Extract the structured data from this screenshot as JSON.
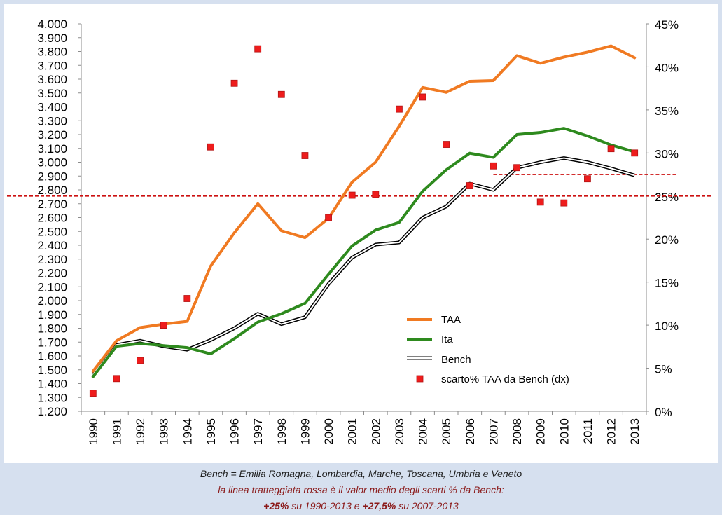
{
  "chart_data": {
    "type": "line",
    "categories": [
      "1990",
      "1991",
      "1992",
      "1993",
      "1994",
      "1995",
      "1996",
      "1997",
      "1998",
      "1999",
      "2000",
      "2001",
      "2002",
      "2003",
      "2004",
      "2005",
      "2006",
      "2007",
      "2008",
      "2009",
      "2010",
      "2011",
      "2012",
      "2013"
    ],
    "y_left": {
      "range": [
        1200,
        4000
      ],
      "ticks": [
        4000,
        3900,
        3800,
        3700,
        3600,
        3500,
        3400,
        3300,
        3200,
        3100,
        3000,
        2900,
        2800,
        2700,
        2600,
        2500,
        2400,
        2300,
        2200,
        2100,
        2000,
        1900,
        1800,
        1700,
        1600,
        1500,
        1400,
        1300,
        1200
      ],
      "tick_labels": [
        "4.000",
        "3.900",
        "3.800",
        "3.700",
        "3.600",
        "3.500",
        "3.400",
        "3.300",
        "3.200",
        "3.100",
        "3.000",
        "2.900",
        "2.800",
        "2.700",
        "2.600",
        "2.500",
        "2.400",
        "2.300",
        "2.200",
        "2.100",
        "2.000",
        "1.900",
        "1.800",
        "1.700",
        "1.600",
        "1.500",
        "1.400",
        "1.300",
        "1.200"
      ]
    },
    "y_right": {
      "range": [
        0,
        45
      ],
      "ticks": [
        45,
        40,
        35,
        30,
        25,
        20,
        15,
        10,
        5,
        0
      ],
      "tick_labels": [
        "45%",
        "40%",
        "35%",
        "30%",
        "25%",
        "20%",
        "15%",
        "10%",
        "5%",
        "0%"
      ]
    },
    "series": [
      {
        "name": "TAA",
        "axis": "left",
        "style": "line",
        "color": "#f07a22",
        "values": [
          1490,
          1710,
          1805,
          1830,
          1850,
          2250,
          2490,
          2700,
          2505,
          2455,
          2595,
          2855,
          3000,
          3260,
          3540,
          3505,
          3585,
          3590,
          3770,
          3715,
          3760,
          3795,
          3840,
          3755
        ]
      },
      {
        "name": "Ita",
        "axis": "left",
        "style": "line",
        "color": "#2e8a1e",
        "values": [
          1450,
          1670,
          1690,
          1675,
          1660,
          1615,
          1725,
          1845,
          1905,
          1980,
          2190,
          2395,
          2510,
          2565,
          2790,
          2945,
          3065,
          3035,
          3200,
          3215,
          3245,
          3190,
          3125,
          3075
        ]
      },
      {
        "name": "Bench",
        "axis": "left",
        "style": "double-line",
        "color": "#000000",
        "values": [
          1465,
          1680,
          1710,
          1670,
          1645,
          1715,
          1800,
          1905,
          1830,
          1880,
          2120,
          2310,
          2405,
          2420,
          2600,
          2680,
          2845,
          2800,
          2960,
          3000,
          3030,
          3000,
          2955,
          2905
        ]
      },
      {
        "name": "scarto% TAA da Bench (dx)",
        "axis": "right",
        "style": "marker",
        "color": "#ee1c1c",
        "values": [
          2.1,
          3.8,
          5.9,
          10.0,
          13.1,
          30.7,
          38.1,
          42.1,
          36.8,
          29.7,
          22.5,
          25.1,
          25.2,
          35.1,
          36.5,
          31.0,
          26.2,
          28.5,
          28.3,
          24.3,
          24.2,
          27.0,
          30.5,
          30.0
        ]
      }
    ],
    "reference_lines": [
      {
        "label": "+25% su 1990-2013",
        "value": 25.0,
        "axis": "right",
        "from": "1990",
        "to": "2013",
        "color": "#cc1111",
        "style": "dashed"
      },
      {
        "label": "+27,5% su 2007-2013",
        "value": 27.5,
        "axis": "right",
        "from": "2007",
        "to": "2013",
        "color": "#cc1111",
        "style": "dashed"
      }
    ],
    "legend": {
      "placement": "bottom-right",
      "entries": [
        "TAA",
        "Ita",
        "Bench",
        "scarto% TAA da Bench (dx)"
      ]
    },
    "grid": false,
    "title": "",
    "xlabel": "",
    "ylabel": ""
  },
  "caption": {
    "line1": "Bench = Emilia Romagna, Lombardia, Marche, Toscana, Umbria e Veneto",
    "line2": "la linea tratteggiata rossa è il valor medio degli scarti % da Bench:",
    "line3": {
      "v1": "+25%",
      "t1": " su 1990-2013 e ",
      "v2": "+27,5%",
      "t2": " su 2007-2013"
    }
  }
}
